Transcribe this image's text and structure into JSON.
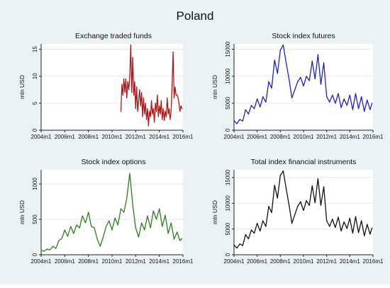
{
  "figure_title": "Poland",
  "colors": {
    "background": "#eaf2f3",
    "plot_bg": "#ffffff",
    "grid": "#e4e8ea"
  },
  "chart_data": [
    {
      "type": "line",
      "title": "Exchange traded funds",
      "ylabel": "mln USD",
      "xlabel": "",
      "color": "#a61c1c",
      "grid": true,
      "xlim": [
        "2004-01",
        "2016-01"
      ],
      "ylim": [
        0,
        16
      ],
      "yticks": [
        0,
        5,
        10,
        15
      ],
      "xticks": [
        "2004-01",
        "2006-01",
        "2008-01",
        "2010-01",
        "2012-01",
        "2014-01",
        "2016-01"
      ],
      "xtick_labels": [
        "2004m1",
        "2006m1",
        "2008m1",
        "2010m1",
        "2012m1",
        "2014m1",
        "2016m1"
      ],
      "x": [
        "2010-10",
        "2010-11",
        "2010-12",
        "2011-01",
        "2011-02",
        "2011-03",
        "2011-04",
        "2011-05",
        "2011-06",
        "2011-07",
        "2011-08",
        "2011-09",
        "2011-10",
        "2011-11",
        "2011-12",
        "2012-01",
        "2012-02",
        "2012-03",
        "2012-04",
        "2012-05",
        "2012-06",
        "2012-07",
        "2012-08",
        "2012-09",
        "2012-10",
        "2012-11",
        "2012-12",
        "2013-01",
        "2013-02",
        "2013-03",
        "2013-04",
        "2013-05",
        "2013-06",
        "2013-07",
        "2013-08",
        "2013-09",
        "2013-10",
        "2013-11",
        "2013-12",
        "2014-01",
        "2014-02",
        "2014-03",
        "2014-04",
        "2014-05",
        "2014-06",
        "2014-07",
        "2014-08",
        "2014-09",
        "2014-10",
        "2014-11",
        "2014-12",
        "2015-01",
        "2015-02",
        "2015-03",
        "2015-04",
        "2015-05",
        "2015-06",
        "2015-07",
        "2015-08",
        "2015-09",
        "2015-10",
        "2015-11",
        "2015-12"
      ],
      "values": [
        3.5,
        8.5,
        6.5,
        9.5,
        7.0,
        9.5,
        6.0,
        9.0,
        7.5,
        10.0,
        15.8,
        7.0,
        13.5,
        6.5,
        9.0,
        4.0,
        8.0,
        3.5,
        5.5,
        7.5,
        4.5,
        7.0,
        2.5,
        6.0,
        3.0,
        5.0,
        2.0,
        4.0,
        0.8,
        3.5,
        2.5,
        5.5,
        3.0,
        4.0,
        1.5,
        5.0,
        3.5,
        6.5,
        2.5,
        4.5,
        3.0,
        5.5,
        2.0,
        4.0,
        1.8,
        3.5,
        2.5,
        6.0,
        3.0,
        4.0,
        2.0,
        3.5,
        8.5,
        14.5,
        6.0,
        8.0,
        6.5,
        6.5,
        6.0,
        5.0,
        3.5,
        4.5,
        4.0
      ]
    },
    {
      "type": "line",
      "title": "Stock index futures",
      "ylabel": "mln USD",
      "xlabel": "",
      "color": "#2222bb",
      "grid": true,
      "xlim": [
        "2004-01",
        "2016-01"
      ],
      "ylim": [
        0,
        16000
      ],
      "yticks": [
        0,
        5000,
        10000,
        15000
      ],
      "xticks": [
        "2004-01",
        "2006-01",
        "2008-01",
        "2010-01",
        "2012-01",
        "2014-01",
        "2016-01"
      ],
      "xtick_labels": [
        "2004m1",
        "2006m1",
        "2008m1",
        "2010m1",
        "2012m1",
        "2014m1",
        "2016m1"
      ],
      "x": [
        "2004-01",
        "2004-04",
        "2004-07",
        "2004-10",
        "2005-01",
        "2005-04",
        "2005-07",
        "2005-10",
        "2006-01",
        "2006-04",
        "2006-07",
        "2006-10",
        "2007-01",
        "2007-04",
        "2007-07",
        "2007-10",
        "2008-01",
        "2008-04",
        "2008-07",
        "2008-10",
        "2009-01",
        "2009-04",
        "2009-07",
        "2009-10",
        "2010-01",
        "2010-04",
        "2010-07",
        "2010-10",
        "2011-01",
        "2011-04",
        "2011-07",
        "2011-10",
        "2012-01",
        "2012-04",
        "2012-07",
        "2012-10",
        "2013-01",
        "2013-04",
        "2013-07",
        "2013-10",
        "2014-01",
        "2014-04",
        "2014-07",
        "2014-10",
        "2015-01",
        "2015-04",
        "2015-07",
        "2015-10",
        "2015-12"
      ],
      "values": [
        1800,
        1200,
        2000,
        1700,
        3800,
        3000,
        4600,
        4000,
        5800,
        4300,
        6200,
        5200,
        9000,
        7800,
        13000,
        10500,
        14800,
        15800,
        12500,
        9500,
        6000,
        7500,
        9000,
        9800,
        8200,
        10000,
        9200,
        12800,
        9500,
        14000,
        8500,
        12500,
        6200,
        5200,
        6500,
        5000,
        6800,
        4200,
        5800,
        4600,
        6500,
        3800,
        6800,
        4000,
        6200,
        3500,
        5600,
        3800,
        5000
      ]
    },
    {
      "type": "line",
      "title": "Stock index options",
      "ylabel": "mln USD",
      "xlabel": "",
      "color": "#2e7d1e",
      "grid": true,
      "xlim": [
        "2004-01",
        "2016-01"
      ],
      "ylim": [
        0,
        1200
      ],
      "yticks": [
        0,
        500,
        1000
      ],
      "xticks": [
        "2004-01",
        "2006-01",
        "2008-01",
        "2010-01",
        "2012-01",
        "2014-01",
        "2016-01"
      ],
      "xtick_labels": [
        "2004m1",
        "2006m1",
        "2008m1",
        "2010m1",
        "2012m1",
        "2014m1",
        "2016m1"
      ],
      "x": [
        "2004-01",
        "2004-04",
        "2004-07",
        "2004-10",
        "2005-01",
        "2005-04",
        "2005-07",
        "2005-10",
        "2006-01",
        "2006-04",
        "2006-07",
        "2006-10",
        "2007-01",
        "2007-04",
        "2007-07",
        "2007-10",
        "2008-01",
        "2008-04",
        "2008-07",
        "2008-10",
        "2009-01",
        "2009-04",
        "2009-07",
        "2009-10",
        "2010-01",
        "2010-04",
        "2010-07",
        "2010-10",
        "2011-01",
        "2011-04",
        "2011-07",
        "2011-10",
        "2012-01",
        "2012-04",
        "2012-07",
        "2012-10",
        "2013-01",
        "2013-04",
        "2013-07",
        "2013-10",
        "2014-01",
        "2014-04",
        "2014-07",
        "2014-10",
        "2015-01",
        "2015-04",
        "2015-07",
        "2015-10",
        "2015-12"
      ],
      "values": [
        60,
        50,
        80,
        70,
        120,
        90,
        200,
        230,
        350,
        260,
        400,
        300,
        420,
        380,
        550,
        450,
        600,
        400,
        380,
        220,
        120,
        250,
        400,
        480,
        350,
        520,
        420,
        650,
        600,
        800,
        1150,
        700,
        380,
        250,
        450,
        350,
        550,
        380,
        620,
        500,
        650,
        400,
        560,
        300,
        450,
        220,
        320,
        200,
        230
      ]
    },
    {
      "type": "line",
      "title": "Total index financial instruments",
      "ylabel": "mln USD",
      "xlabel": "",
      "color": "#111111",
      "grid": true,
      "xlim": [
        "2004-01",
        "2016-01"
      ],
      "ylim": [
        0,
        16500
      ],
      "yticks": [
        0,
        5000,
        10000,
        15000
      ],
      "xticks": [
        "2004-01",
        "2006-01",
        "2008-01",
        "2010-01",
        "2012-01",
        "2014-01",
        "2016-01"
      ],
      "xtick_labels": [
        "2004m1",
        "2006m1",
        "2008m1",
        "2010m1",
        "2012m1",
        "2014m1",
        "2016m1"
      ],
      "x": [
        "2004-01",
        "2004-04",
        "2004-07",
        "2004-10",
        "2005-01",
        "2005-04",
        "2005-07",
        "2005-10",
        "2006-01",
        "2006-04",
        "2006-07",
        "2006-10",
        "2007-01",
        "2007-04",
        "2007-07",
        "2007-10",
        "2008-01",
        "2008-04",
        "2008-07",
        "2008-10",
        "2009-01",
        "2009-04",
        "2009-07",
        "2009-10",
        "2010-01",
        "2010-04",
        "2010-07",
        "2010-10",
        "2011-01",
        "2011-04",
        "2011-07",
        "2011-10",
        "2012-01",
        "2012-04",
        "2012-07",
        "2012-10",
        "2013-01",
        "2013-04",
        "2013-07",
        "2013-10",
        "2014-01",
        "2014-04",
        "2014-07",
        "2014-10",
        "2015-01",
        "2015-04",
        "2015-07",
        "2015-10",
        "2015-12"
      ],
      "values": [
        1900,
        1300,
        2100,
        1800,
        3900,
        3100,
        4800,
        4200,
        6100,
        4600,
        6600,
        5500,
        9400,
        8200,
        13500,
        11000,
        15400,
        16300,
        12900,
        9700,
        6100,
        7800,
        9400,
        10300,
        8600,
        10500,
        9600,
        13400,
        10100,
        14800,
        9600,
        13200,
        6600,
        5500,
        6900,
        5300,
        7300,
        4600,
        6400,
        5100,
        7100,
        4200,
        7400,
        4300,
        6600,
        3700,
        5900,
        4000,
        5200
      ]
    }
  ]
}
